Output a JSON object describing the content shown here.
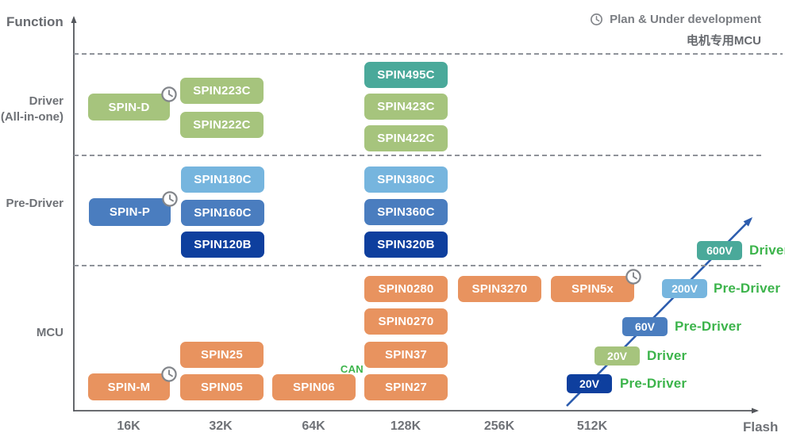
{
  "legend": {
    "plan": "Plan & Under development",
    "subtitle": "电机专用MCU"
  },
  "axes": {
    "y_label": "Function",
    "x_label": "Flash",
    "ticks": [
      "16K",
      "32K",
      "64K",
      "128K",
      "256K",
      "512K"
    ]
  },
  "rows": [
    {
      "lines": [
        "Driver",
        "(All-in-one)"
      ]
    },
    {
      "lines": [
        "Pre-Driver"
      ]
    },
    {
      "lines": [
        "MCU"
      ]
    }
  ],
  "colors": {
    "green": "#a6c47d",
    "teal": "#4aa99a",
    "lightblue": "#76b5de",
    "steelblue": "#4a7dbf",
    "navy": "#0e3f9e",
    "orange": "#e8935f",
    "arrow": "#2d5dae",
    "ladder_text": "#3cb44b",
    "axis": "#54575c"
  },
  "chips": [
    {
      "label": "SPIN-D",
      "palette": "green",
      "plan": true
    },
    {
      "label": "SPIN223C",
      "palette": "green"
    },
    {
      "label": "SPIN222C",
      "palette": "green"
    },
    {
      "label": "SPIN495C",
      "palette": "teal"
    },
    {
      "label": "SPIN423C",
      "palette": "green"
    },
    {
      "label": "SPIN422C",
      "palette": "green"
    },
    {
      "label": "SPIN180C",
      "palette": "lightblue"
    },
    {
      "label": "SPIN-P",
      "palette": "steelblue",
      "plan": true
    },
    {
      "label": "SPIN160C",
      "palette": "steelblue"
    },
    {
      "label": "SPIN120B",
      "palette": "navy"
    },
    {
      "label": "SPIN380C",
      "palette": "lightblue"
    },
    {
      "label": "SPIN360C",
      "palette": "steelblue"
    },
    {
      "label": "SPIN320B",
      "palette": "navy"
    },
    {
      "label": "SPIN0280",
      "palette": "orange"
    },
    {
      "label": "SPIN3270",
      "palette": "orange"
    },
    {
      "label": "SPIN5x",
      "palette": "orange",
      "plan": true
    },
    {
      "label": "SPIN0270",
      "palette": "orange"
    },
    {
      "label": "SPIN25",
      "palette": "orange"
    },
    {
      "label": "SPIN37",
      "palette": "orange"
    },
    {
      "label": "SPIN-M",
      "palette": "orange",
      "plan": true
    },
    {
      "label": "SPIN05",
      "palette": "orange"
    },
    {
      "label": "SPIN06",
      "palette": "orange",
      "tag": "CAN"
    },
    {
      "label": "SPIN27",
      "palette": "orange"
    }
  ],
  "voltage_ladder": [
    {
      "voltage": "20V",
      "type": "Pre-Driver",
      "palette": "navy"
    },
    {
      "voltage": "20V",
      "type": "Driver",
      "palette": "green"
    },
    {
      "voltage": "60V",
      "type": "Pre-Driver",
      "palette": "steelblue"
    },
    {
      "voltage": "200V",
      "type": "Pre-Driver",
      "palette": "lightblue"
    },
    {
      "voltage": "600V",
      "type": "Driver",
      "palette": "teal"
    }
  ],
  "chart_data": {
    "type": "scatter",
    "title": "电机专用MCU",
    "xlabel": "Flash",
    "ylabel": "Function",
    "x_ticks": [
      "16K",
      "32K",
      "64K",
      "128K",
      "256K",
      "512K"
    ],
    "y_categories": [
      "MCU",
      "Pre-Driver",
      "Driver (All-in-one)"
    ],
    "legend": [
      {
        "icon": "clock",
        "label": "Plan & Under development"
      }
    ],
    "series": [
      {
        "name": "Driver (All-in-one)",
        "points": [
          {
            "label": "SPIN-D",
            "flash": "16K",
            "status": "plan"
          },
          {
            "label": "SPIN223C",
            "flash": "32K"
          },
          {
            "label": "SPIN222C",
            "flash": "32K"
          },
          {
            "label": "SPIN495C",
            "flash": "128K"
          },
          {
            "label": "SPIN423C",
            "flash": "128K"
          },
          {
            "label": "SPIN422C",
            "flash": "128K"
          }
        ]
      },
      {
        "name": "Pre-Driver",
        "points": [
          {
            "label": "SPIN-P",
            "flash": "16K",
            "status": "plan"
          },
          {
            "label": "SPIN180C",
            "flash": "32K"
          },
          {
            "label": "SPIN160C",
            "flash": "32K"
          },
          {
            "label": "SPIN120B",
            "flash": "32K"
          },
          {
            "label": "SPIN380C",
            "flash": "128K"
          },
          {
            "label": "SPIN360C",
            "flash": "128K"
          },
          {
            "label": "SPIN320B",
            "flash": "128K"
          }
        ]
      },
      {
        "name": "MCU",
        "points": [
          {
            "label": "SPIN-M",
            "flash": "16K",
            "status": "plan"
          },
          {
            "label": "SPIN25",
            "flash": "32K"
          },
          {
            "label": "SPIN05",
            "flash": "32K"
          },
          {
            "label": "SPIN06",
            "flash": "64K",
            "tag": "CAN"
          },
          {
            "label": "SPIN0280",
            "flash": "128K"
          },
          {
            "label": "SPIN0270",
            "flash": "128K"
          },
          {
            "label": "SPIN37",
            "flash": "128K"
          },
          {
            "label": "SPIN27",
            "flash": "128K"
          },
          {
            "label": "SPIN3270",
            "flash": "256K"
          },
          {
            "label": "SPIN5x",
            "flash": "512K",
            "status": "plan"
          }
        ]
      }
    ],
    "voltage_ladder": [
      {
        "voltage": "20V",
        "type": "Pre-Driver"
      },
      {
        "voltage": "20V",
        "type": "Driver"
      },
      {
        "voltage": "60V",
        "type": "Pre-Driver"
      },
      {
        "voltage": "200V",
        "type": "Pre-Driver"
      },
      {
        "voltage": "600V",
        "type": "Driver"
      }
    ]
  }
}
